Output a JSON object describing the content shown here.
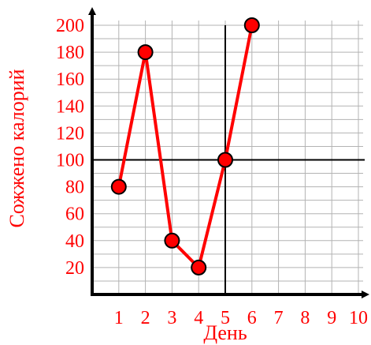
{
  "chart_data": {
    "type": "line",
    "title": "",
    "xlabel": "День",
    "ylabel": "Сожжено калорий",
    "x_ticks": [
      "1",
      "2",
      "3",
      "4",
      "5",
      "6",
      "7",
      "8",
      "9",
      "10"
    ],
    "y_ticks": [
      "20",
      "40",
      "60",
      "80",
      "100",
      "120",
      "140",
      "160",
      "180",
      "200"
    ],
    "xlim": [
      0,
      10
    ],
    "ylim": [
      0,
      200
    ],
    "grid": true,
    "reference_lines": {
      "x": 5,
      "y": 100
    },
    "series": [
      {
        "x": [
          1,
          2,
          3,
          4,
          5,
          6
        ],
        "y": [
          80,
          180,
          40,
          20,
          100,
          200
        ]
      }
    ],
    "colors": {
      "label": "#ff0000",
      "line": "#ff0000",
      "marker_fill": "#ff0000",
      "marker_stroke": "#000000",
      "axis": "#000000",
      "grid": "#b3b3b3"
    }
  }
}
